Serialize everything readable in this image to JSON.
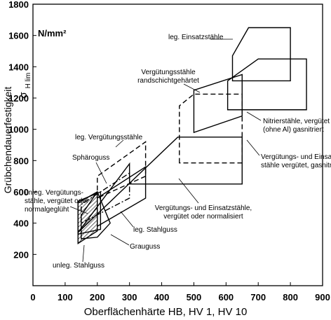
{
  "chart_data": {
    "type": "region",
    "y_title": "Grübchendauerfestigkeit",
    "y_symbol": "σ",
    "y_symbol_sub": "H lim",
    "y_unit": "N/mm²",
    "x_title": "Oberflächenhärte HB, HV 1, HV 10",
    "xlim": [
      0,
      900
    ],
    "xticks": [
      0,
      100,
      200,
      300,
      400,
      500,
      600,
      700,
      800,
      900
    ],
    "ylim": [
      0,
      1800
    ],
    "yticks": [
      200,
      400,
      600,
      800,
      1000,
      1200,
      1400,
      1600,
      1800
    ],
    "series": [
      {
        "label_lines": [
          "leg. Einsatzstähle"
        ],
        "dash": "solid",
        "hatch": false,
        "x": [
          620,
          620,
          670,
          800,
          800
        ],
        "y": [
          1310,
          1470,
          1650,
          1650,
          1310
        ]
      },
      {
        "label_lines": [
          "Nitrierstähle, vergütet",
          "(ohne Al) gasnitriert"
        ],
        "dash": "solid",
        "hatch": false,
        "x": [
          605,
          605,
          700,
          850,
          850
        ],
        "y": [
          1125,
          1310,
          1450,
          1450,
          1125
        ]
      },
      {
        "label_lines": [
          "Vergütungsstähle",
          "randschichtgehärtet"
        ],
        "dash": "solid",
        "hatch": false,
        "x": [
          500,
          500,
          650,
          650
        ],
        "y": [
          980,
          1250,
          1350,
          1085
        ]
      },
      {
        "label_lines": [
          "Vergütungs- und Einsatz-",
          "stähle vergütet, gasnitriert"
        ],
        "dash": "dashed",
        "hatch": false,
        "x": [
          455,
          455,
          500,
          650,
          650
        ],
        "y": [
          785,
          1150,
          1225,
          1225,
          785
        ]
      },
      {
        "label_lines": [
          "Vergütungs- und Einsatzstähle,",
          "vergütet oder normalisiert"
        ],
        "dash": "solid",
        "hatch": false,
        "x": [
          140,
          450,
          650,
          650,
          300,
          300
        ],
        "y": [
          340,
          950,
          950,
          650,
          650,
          780
        ]
      },
      {
        "label_lines": [
          "leg. Vergütungsstähle"
        ],
        "dash": "dashed",
        "hatch": false,
        "x": [
          200,
          200,
          350,
          350
        ],
        "y": [
          560,
          700,
          920,
          700
        ]
      },
      {
        "label_lines": [
          "Sphäroguss"
        ],
        "dash": "dashdot",
        "hatch": false,
        "x": [
          150,
          150,
          300,
          300
        ],
        "y": [
          400,
          520,
          720,
          560
        ]
      },
      {
        "label_lines": [
          "leg. Stahlguss"
        ],
        "dash": "solid",
        "hatch": false,
        "x": [
          200,
          200,
          350,
          350
        ],
        "y": [
          380,
          560,
          760,
          560
        ]
      },
      {
        "label_lines": [
          "Grauguss"
        ],
        "dash": "solid",
        "hatch": false,
        "x": [
          150,
          150,
          200,
          240,
          200
        ],
        "y": [
          300,
          450,
          600,
          400,
          310
        ]
      },
      {
        "label_lines": [
          "unleg. Stahlguss"
        ],
        "dash": "solid",
        "hatch": true,
        "x": [
          140,
          140,
          200,
          200
        ],
        "y": [
          270,
          530,
          600,
          350
        ]
      },
      {
        "label_lines": [
          "unleg. Vergütungs-",
          "stähle, vergütet oder",
          "normalgeglüht"
        ],
        "dash": "solid",
        "hatch": false,
        "x": [
          140,
          140,
          210,
          210
        ],
        "y": [
          330,
          540,
          600,
          360
        ]
      }
    ]
  }
}
